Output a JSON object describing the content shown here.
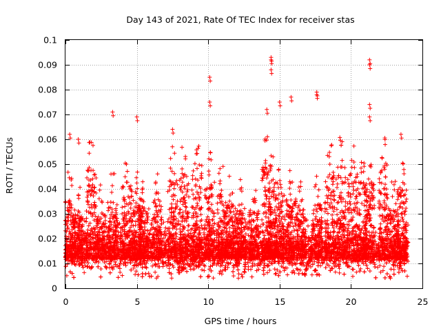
{
  "chart_data": {
    "type": "scatter",
    "title": "Day 143 of 2021, Rate Of TEC Index for receiver stas",
    "xlabel": "GPS time / hours",
    "ylabel": "ROTI / TECUs",
    "xlim": [
      0,
      25
    ],
    "ylim": [
      0,
      0.1
    ],
    "x_ticks": [
      0,
      5,
      10,
      15,
      20,
      25
    ],
    "y_ticks": [
      0,
      0.01,
      0.02,
      0.03,
      0.04,
      0.05,
      0.06,
      0.07,
      0.08,
      0.09,
      0.1
    ],
    "x_tick_labels": [
      "0",
      "5",
      "10",
      "15",
      "20",
      "25"
    ],
    "y_tick_labels": [
      "0",
      "0.01",
      "0.02",
      "0.03",
      "0.04",
      "0.05",
      "0.06",
      "0.07",
      "0.08",
      "0.09",
      "0.1"
    ],
    "grid": true,
    "marker": "+",
    "color": "#ff0000",
    "data_x_range": [
      0,
      24
    ],
    "baseline_band": [
      0.005,
      0.025
    ],
    "notable_points": [
      {
        "x": 0.3,
        "y": 0.062
      },
      {
        "x": 0.9,
        "y": 0.06
      },
      {
        "x": 3.3,
        "y": 0.071
      },
      {
        "x": 5.0,
        "y": 0.069
      },
      {
        "x": 7.5,
        "y": 0.064
      },
      {
        "x": 10.1,
        "y": 0.085
      },
      {
        "x": 10.1,
        "y": 0.075
      },
      {
        "x": 14.1,
        "y": 0.072
      },
      {
        "x": 14.4,
        "y": 0.093
      },
      {
        "x": 14.4,
        "y": 0.092
      },
      {
        "x": 14.4,
        "y": 0.088
      },
      {
        "x": 15.0,
        "y": 0.075
      },
      {
        "x": 15.8,
        "y": 0.077
      },
      {
        "x": 17.6,
        "y": 0.079
      },
      {
        "x": 17.6,
        "y": 0.078
      },
      {
        "x": 21.3,
        "y": 0.092
      },
      {
        "x": 21.3,
        "y": 0.09
      },
      {
        "x": 21.3,
        "y": 0.074
      },
      {
        "x": 21.3,
        "y": 0.069
      },
      {
        "x": 23.5,
        "y": 0.062
      }
    ],
    "burst_centers": [
      0.3,
      0.9,
      1.8,
      2.5,
      3.3,
      4.3,
      5.0,
      5.5,
      6.4,
      7.5,
      8.3,
      9.2,
      10.1,
      10.9,
      11.6,
      12.3,
      13.2,
      14.1,
      14.5,
      15.0,
      15.8,
      16.5,
      17.6,
      18.5,
      19.3,
      20.1,
      20.8,
      21.3,
      22.3,
      23.0,
      23.6
    ]
  }
}
